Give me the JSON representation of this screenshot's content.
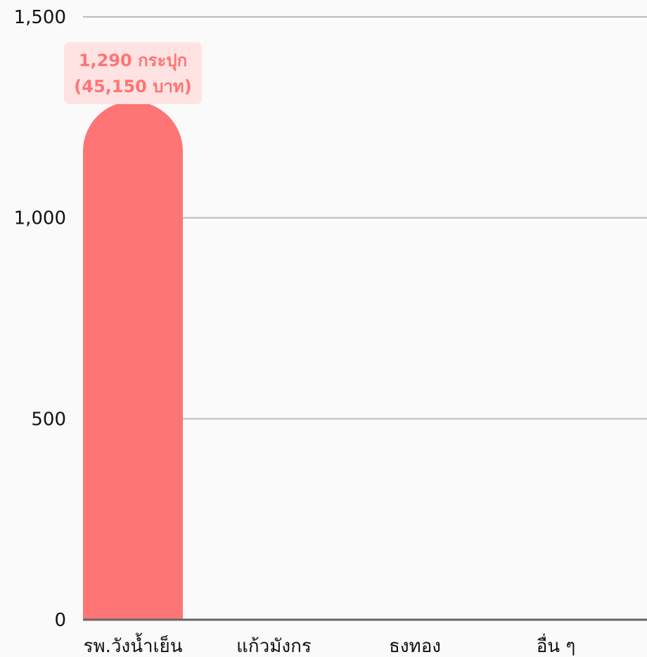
{
  "chart_data": {
    "type": "bar",
    "categories": [
      "รพ.วังน้ำเย็น",
      "แก้วมังกร",
      "ธงทอง",
      "อื่น ๆ"
    ],
    "values": [
      1290,
      0,
      0,
      0
    ],
    "data_labels": [
      [
        "1,290 กระปุก",
        "(45,150 บาท)"
      ],
      null,
      null,
      null
    ],
    "ylim": [
      0,
      1500
    ],
    "yticks": [
      0,
      500,
      1000,
      1500
    ],
    "ytick_labels": [
      "0",
      "500",
      "1,000",
      "1,500"
    ],
    "grid": true,
    "legend": "none",
    "colors": {
      "bar": "#ff7474",
      "label_text": "#ff7474",
      "label_background": "#ffe3e3",
      "grid": "#bbbbbb",
      "axis": "#666666",
      "background": "#fafafa"
    }
  }
}
